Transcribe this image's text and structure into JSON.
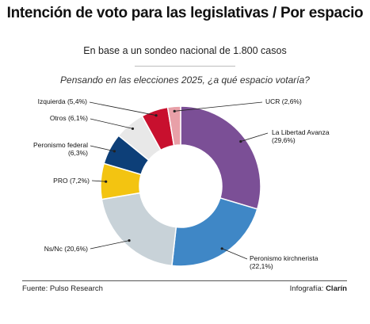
{
  "header": {
    "title": "Intención de voto para las legislativas / Por espacio",
    "subtitle": "En base a un sondeo nacional de 1.800 casos",
    "question": "Pensando en las elecciones 2025, ¿a qué espacio votaría?"
  },
  "chart_data": {
    "type": "pie",
    "donut": true,
    "slices": [
      {
        "label": "La Libertad Avanza",
        "pct_text": "(29,6%)",
        "value": 29.6,
        "color": "#7b4f96"
      },
      {
        "label": "Peronismo kirchnerista",
        "pct_text": "(22,1%)",
        "value": 22.1,
        "color": "#3f87c6"
      },
      {
        "label": "Ns/Nc",
        "pct_text": "(20,6%)",
        "value": 20.6,
        "color": "#c8d2d8"
      },
      {
        "label": "PRO",
        "pct_text": "(7,2%)",
        "value": 7.2,
        "color": "#f3c411"
      },
      {
        "label": "Peronismo federal",
        "pct_text": "(6,3%)",
        "value": 6.3,
        "color": "#0d3f78"
      },
      {
        "label": "Otros",
        "pct_text": "(6,1%)",
        "value": 6.1,
        "color": "#e8e8e8"
      },
      {
        "label": "Izquierda",
        "pct_text": "(5,4%)",
        "value": 5.4,
        "color": "#c8102e"
      },
      {
        "label": "UCR",
        "pct_text": "(2,6%)",
        "value": 2.6,
        "color": "#e8a0a8"
      }
    ]
  },
  "footer": {
    "source": "Fuente: Pulso Research",
    "credit_prefix": "Infografía: ",
    "credit_name": "Clarín"
  }
}
